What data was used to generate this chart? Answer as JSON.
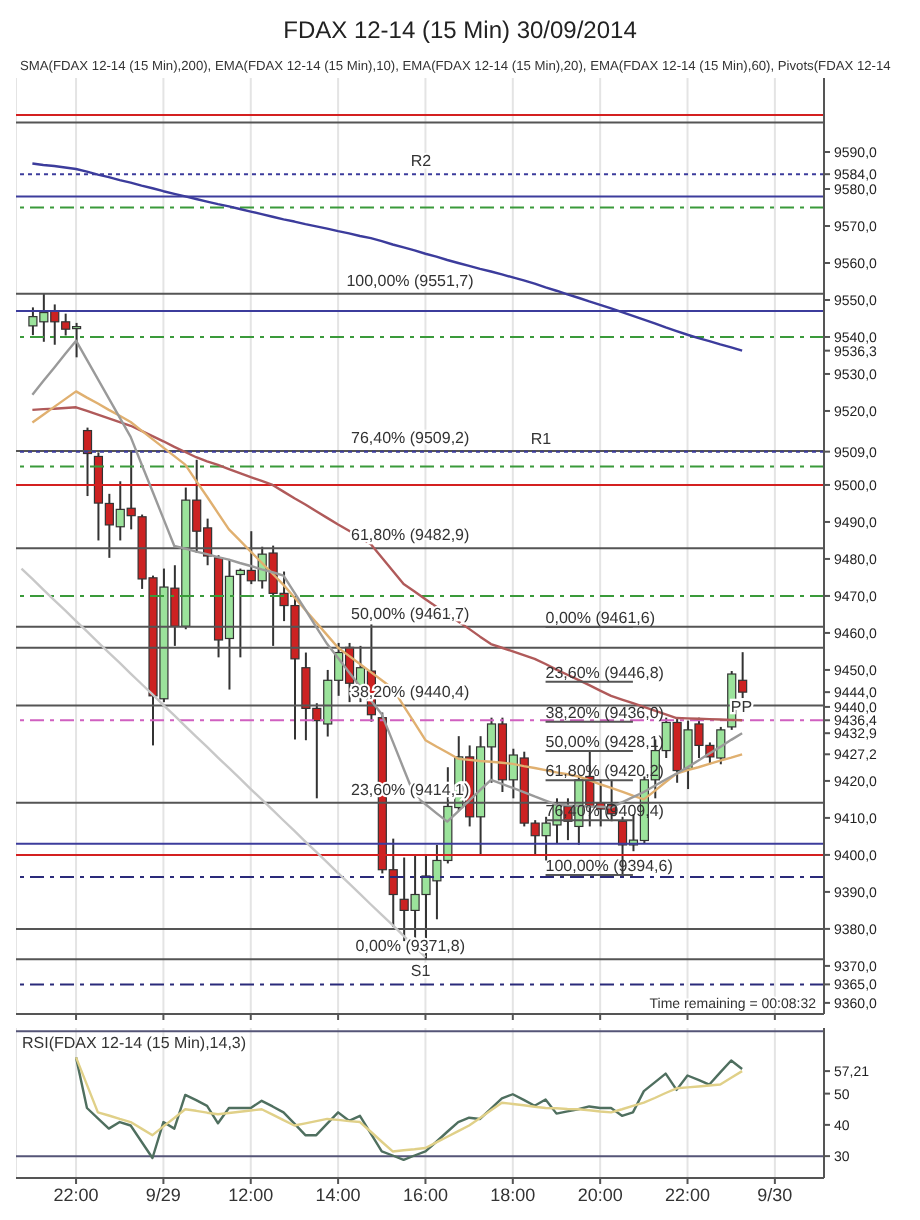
{
  "chart_data": [
    {
      "type": "candlestick",
      "title": "FDAX 12-14 (15 Min)  30/09/2014",
      "categories": [
        null,
        null,
        null,
        null,
        null,
        null,
        null,
        null,
        null,
        null,
        null,
        null,
        null,
        null,
        null,
        null,
        null,
        null,
        null,
        null,
        null,
        null,
        null,
        null,
        null,
        null,
        null,
        null,
        null,
        null,
        null,
        null,
        null,
        null,
        null,
        null,
        null,
        null,
        null,
        null,
        null,
        null,
        null,
        null,
        null,
        null,
        null,
        null,
        null,
        null,
        null,
        null,
        null,
        null,
        null,
        null,
        null,
        null,
        null,
        null,
        null,
        null,
        null,
        null,
        null,
        null,
        null,
        null,
        null,
        null,
        null,
        null,
        null,
        null
      ],
      "ohlc": [
        null,
        [
          9543,
          9548,
          9540.5,
          9545.5
        ],
        [
          9544.1,
          9551.7,
          9538.7,
          9546.6
        ],
        [
          9547.1,
          9548.8,
          9537.9,
          9544.1
        ],
        [
          9544.1,
          9546.3,
          9540.4,
          9542.1
        ],
        [
          9542.4,
          9543.8,
          9534.5,
          9542.8
        ],
        [
          9514.7,
          9515.5,
          9497,
          9508.5
        ],
        [
          9507.7,
          9508.8,
          9485,
          9495.1
        ],
        [
          9495,
          9497.6,
          9480.3,
          9489.2
        ],
        [
          9488.7,
          9501,
          9485,
          9493.4
        ],
        [
          9493.7,
          9509.3,
          9488,
          9491.7
        ],
        [
          9491.4,
          9492,
          9471.9,
          9474.6
        ],
        [
          9474.9,
          9475.5,
          9429.6,
          9443
        ],
        [
          9442.2,
          9477.4,
          9441.3,
          9472.4
        ],
        [
          9472.1,
          9478.3,
          9456.5,
          9461.8
        ],
        [
          9461.8,
          9499.3,
          9461,
          9495.9
        ],
        [
          9495.9,
          9506.8,
          9481.6,
          9487.5
        ],
        [
          9488.4,
          9490.9,
          9478.3,
          9480.8
        ],
        [
          9480.3,
          9481,
          9453.4,
          9458.1
        ],
        [
          9458.5,
          9480,
          9444.7,
          9475.3
        ],
        [
          9475.8,
          9477.4,
          9453.4,
          9476.9
        ],
        [
          9476.9,
          9487.5,
          9473.2,
          9474.1
        ],
        [
          9474.1,
          9483.3,
          9472,
          9481.3
        ],
        [
          9481.6,
          9483.6,
          9456.5,
          9470.7
        ],
        [
          9470.7,
          9476.6,
          9463.2,
          9467.4
        ],
        [
          9467.4,
          9470,
          9431.2,
          9453
        ],
        [
          9450.6,
          9454.7,
          9431,
          9439.6
        ],
        [
          9439.6,
          9441,
          9415.3,
          9436.3
        ],
        [
          9435.4,
          9450,
          9432,
          9447.2
        ],
        [
          9447.2,
          9457.3,
          9443,
          9454.7
        ],
        [
          9456.1,
          9457.3,
          9441.3,
          9446.4
        ],
        [
          9445.5,
          9456.5,
          9441.3,
          9450.6
        ],
        [
          9449.7,
          9462.3,
          9436,
          9437.9
        ],
        [
          9437.1,
          9438.5,
          9395,
          9396
        ],
        [
          9396,
          9404.4,
          9380.5,
          9389.3
        ],
        [
          9388,
          9399.3,
          9376.7,
          9385
        ],
        [
          9385,
          9399.7,
          9376.2,
          9389.3
        ],
        [
          9389.3,
          9399.7,
          9371.8,
          9394.3
        ],
        [
          9393,
          9402.7,
          9382.6,
          9398.5
        ],
        [
          9398.5,
          9423.7,
          9397.7,
          9413.1
        ],
        [
          9412.8,
          9432.1,
          9411.9,
          9426.5
        ],
        [
          9426.5,
          9429.6,
          9407.7,
          9410.3
        ],
        [
          9410.3,
          9432.1,
          9400.2,
          9429.2
        ],
        [
          9429.2,
          9437.1,
          9419.5,
          9435.4
        ],
        [
          9435.4,
          9437.1,
          9417,
          9420.3
        ],
        [
          9420.3,
          9428.7,
          9415.3,
          9427
        ],
        [
          9426.2,
          9427.9,
          9407.7,
          9408.6
        ],
        [
          9408.6,
          9409.4,
          9400.2,
          9405.2
        ],
        [
          9405.2,
          9410.3,
          9398.5,
          9408.6
        ],
        [
          9408.1,
          9415.3,
          9403,
          9413.6
        ],
        [
          9413.1,
          9415.3,
          9404,
          9409.1
        ],
        [
          9407.7,
          9421.2,
          9402.7,
          9420.3
        ],
        [
          9421.2,
          9427.9,
          9407.7,
          9413.1
        ],
        [
          9414.1,
          9420.3,
          9407.7,
          9412.4
        ],
        [
          9413.6,
          9420.3,
          9409.1,
          9411.1
        ],
        [
          9409.1,
          9410.3,
          9394.6,
          9402.7
        ],
        [
          9402.7,
          9411,
          9401,
          9404
        ],
        [
          9403.9,
          9421.2,
          9403,
          9420.3
        ],
        [
          9420.3,
          9431.2,
          9415.3,
          9428.2
        ],
        [
          9428.2,
          9437.1,
          9426.2,
          9435.8
        ],
        [
          9435.8,
          9437.1,
          9419.5,
          9422.8
        ],
        [
          9423.2,
          9436.3,
          9417.8,
          9433.8
        ],
        [
          9435.4,
          9437.1,
          9426.2,
          9429.6
        ],
        [
          9429.6,
          9430.4,
          9424.5,
          9426.5
        ],
        [
          9426.2,
          9434.6,
          9424.5,
          9433.8
        ],
        [
          9434.6,
          9449.7,
          9433.8,
          9448.9
        ],
        [
          9447.2,
          9454.8,
          9442.4,
          9444
        ],
        null,
        null,
        null,
        null,
        null,
        null,
        null
      ],
      "series": [
        {
          "type": "line",
          "color": "#c8c8c8",
          "values": [
            9477.4,
            9474.6,
            9471.7,
            9468.9,
            9466.1,
            9463.2,
            9460.4,
            9457.5,
            9454.7,
            9451.9,
            9449.0,
            9446.2,
            9443.4,
            9440.5,
            9437.7,
            9434.8,
            9432.0,
            9429.2,
            9426.3,
            9423.5,
            9420.7,
            9417.8,
            9415.0,
            9412.2,
            9409.3,
            9406.5,
            9403.6,
            9400.8,
            9398.0,
            9395.1,
            9392.3,
            9389.5,
            9386.6,
            9383.8,
            9381.0,
            9378.1,
            9375.3,
            9372.4,
            null,
            null,
            null,
            null,
            null,
            null,
            null,
            null,
            null,
            null,
            null,
            null,
            null,
            null,
            null,
            null,
            null,
            null,
            null,
            null,
            null,
            null,
            null,
            null,
            null,
            null,
            null,
            null,
            null,
            null,
            null,
            null,
            null,
            null,
            null,
            null
          ]
        },
        {
          "type": "line",
          "color": "#3c3c9c",
          "values": [
            null,
            9586.9,
            9586.5,
            9586.2,
            9585.8,
            9585.4,
            9584.7,
            9583.9,
            9583.2,
            9582.4,
            9581.7,
            9580.9,
            9580.2,
            9579.4,
            9578.7,
            9578.0,
            9577.3,
            9576.6,
            9575.9,
            9575.3,
            9574.6,
            9573.9,
            9573.2,
            9572.5,
            9571.8,
            9571.2,
            9570.5,
            9569.9,
            9569.3,
            9568.6,
            9568.0,
            9567.3,
            9566.7,
            9565.9,
            9565.0,
            9564.2,
            9563.4,
            9562.5,
            9561.7,
            9560.8,
            9560.0,
            9559.2,
            9558.4,
            9557.7,
            9556.9,
            9556.1,
            9555.3,
            9554.4,
            9553.4,
            9552.5,
            9551.5,
            9550.6,
            9549.6,
            9548.7,
            9547.7,
            9546.7,
            9545.7,
            9544.7,
            9543.7,
            9542.6,
            9541.6,
            9540.6,
            9539.7,
            9538.9,
            9538.0,
            9537.2,
            9536.3,
            null,
            null,
            null,
            null,
            null,
            null,
            null
          ]
        },
        {
          "type": "line",
          "color": "#b05a5a",
          "values": [
            null,
            9520.3,
            9520.5,
            9520.6,
            9520.8,
            9521,
            9520,
            9519,
            9518,
            9517,
            9516,
            9514.6,
            9513.2,
            9511.8,
            9510.3,
            9508.9,
            9507.5,
            9506.4,
            9505.4,
            9504.3,
            9503.2,
            9502.1,
            9501.1,
            9500,
            9498.2,
            9496.4,
            9494.7,
            9492.9,
            9491.1,
            9489.3,
            9487.6,
            9485.8,
            9484,
            9480.4,
            9476.8,
            9473.2,
            9471.2,
            9469.1,
            9467.1,
            9465.1,
            9463.1,
            9461.1,
            9459.0,
            9457,
            9456,
            9455,
            9454,
            9453,
            9451.6,
            9450.1,
            9448.7,
            9447.3,
            9445.9,
            9444.4,
            9443,
            9442,
            9441,
            9440,
            9439,
            9438,
            9437,
            9436.9,
            9436.8,
            9436.7,
            9436.6,
            9436.5,
            9436.4,
            null,
            null,
            null,
            null,
            null,
            null,
            null
          ]
        },
        {
          "type": "line",
          "color": "#e0b070",
          "values": [
            null,
            9516.9,
            9519.0,
            9521.1,
            9523.2,
            9525.3,
            9523.6,
            9522.0,
            9520.3,
            9518.7,
            9517,
            9514.7,
            9512.4,
            9510.1,
            9507.8,
            9505.5,
            9501.1,
            9496.8,
            9492.4,
            9488,
            9485,
            9482,
            9479,
            9476,
            9473,
            9469.6,
            9466.2,
            9462.8,
            9459.4,
            9456,
            9453.8,
            9451.6,
            9449.4,
            9447.2,
            9445,
            9440.3,
            9435.7,
            9431,
            9429.3,
            9427.7,
            9426,
            9425.7,
            9425.4,
            9425.2,
            9424.9,
            9424.6,
            9424.0,
            9423.5,
            9422.9,
            9422.3,
            9421.8,
            9421.2,
            9420.2,
            9419.1,
            9418.1,
            9417.1,
            9416.0,
            9415,
            9417.3,
            9419.7,
            9422,
            9422.9,
            9423.7,
            9424.6,
            9425.5,
            9426.3,
            9427.2,
            null,
            null,
            null,
            null,
            null,
            null,
            null
          ]
        },
        {
          "type": "line",
          "color": "#9a9a9a",
          "values": [
            null,
            9524.4,
            9528.1,
            9531.7,
            9535.4,
            9539,
            9533.8,
            9528.6,
            9523.4,
            9518.2,
            9513,
            9505.6,
            9498.3,
            9490.9,
            9483.5,
            9482.8,
            9482.0,
            9481.3,
            9480.5,
            9479.8,
            9478.9,
            9478.1,
            9477.2,
            9476.4,
            9475.5,
            9470.9,
            9466.3,
            9461.6,
            9457,
            9453.2,
            9449.4,
            9445.6,
            9441.8,
            9438,
            9430.7,
            9423.3,
            9416,
            9413.7,
            9411.3,
            9409,
            9411.8,
            9414.7,
            9417.5,
            9420.3,
            9419.2,
            9418.1,
            9417.0,
            9415.8,
            9414.7,
            9413.6,
            9413.4,
            9413.3,
            9413.1,
            9413.0,
            9412.8,
            9414.2,
            9415.6,
            9417,
            9418.7,
            9420.4,
            9422.0,
            9423.7,
            9425.5,
            9427.4,
            9429.2,
            9431.1,
            9432.9,
            null,
            null,
            null,
            null,
            null,
            null,
            null
          ]
        },
        {
          "type": "line",
          "name": "0,00% (9461,6)",
          "color": "#555555",
          "values": [
            null,
            null,
            null,
            null,
            null,
            null,
            null,
            null,
            null,
            null,
            null,
            null,
            null,
            null,
            null,
            null,
            null,
            null,
            null,
            null,
            null,
            null,
            null,
            null,
            null,
            null,
            null,
            null,
            null,
            null,
            null,
            null,
            null,
            null,
            null,
            null,
            null,
            null,
            null,
            null,
            null,
            null,
            null,
            null,
            null,
            null,
            null,
            null,
            9461.6,
            9461.6,
            9461.6,
            9461.6,
            9461.6,
            9461.6,
            9461.6,
            9461.6,
            9461.6,
            null,
            null,
            null,
            null,
            null,
            null,
            null,
            null,
            null,
            null,
            null,
            null,
            null,
            null,
            null,
            null,
            null
          ]
        },
        {
          "type": "line",
          "name": "23,60% (9446,8)",
          "color": "#555555",
          "values": [
            null,
            null,
            null,
            null,
            null,
            null,
            null,
            null,
            null,
            null,
            null,
            null,
            null,
            null,
            null,
            null,
            null,
            null,
            null,
            null,
            null,
            null,
            null,
            null,
            null,
            null,
            null,
            null,
            null,
            null,
            null,
            null,
            null,
            null,
            null,
            null,
            null,
            null,
            null,
            null,
            null,
            null,
            null,
            null,
            null,
            null,
            null,
            null,
            9446.8,
            9446.8,
            9446.8,
            9446.8,
            9446.8,
            9446.8,
            9446.8,
            9446.8,
            9446.8,
            null,
            null,
            null,
            null,
            null,
            null,
            null,
            null,
            null,
            null,
            null,
            null,
            null,
            null,
            null,
            null,
            null
          ]
        },
        {
          "type": "line",
          "name": "38,20% (9436,0)",
          "color": "#555555",
          "values": [
            null,
            null,
            null,
            null,
            null,
            null,
            null,
            null,
            null,
            null,
            null,
            null,
            null,
            null,
            null,
            null,
            null,
            null,
            null,
            null,
            null,
            null,
            null,
            null,
            null,
            null,
            null,
            null,
            null,
            null,
            null,
            null,
            null,
            null,
            null,
            null,
            null,
            null,
            null,
            null,
            null,
            null,
            null,
            null,
            null,
            null,
            null,
            null,
            9436,
            9436,
            9436,
            9436,
            9436,
            9436,
            9436,
            9436,
            9436,
            null,
            null,
            null,
            null,
            null,
            null,
            null,
            null,
            null,
            null,
            null,
            null,
            null,
            null,
            null,
            null,
            null
          ]
        },
        {
          "type": "line",
          "name": "50,00% (9428,1)",
          "color": "#555555",
          "values": [
            null,
            null,
            null,
            null,
            null,
            null,
            null,
            null,
            null,
            null,
            null,
            null,
            null,
            null,
            null,
            null,
            null,
            null,
            null,
            null,
            null,
            null,
            null,
            null,
            null,
            null,
            null,
            null,
            null,
            null,
            null,
            null,
            null,
            null,
            null,
            null,
            null,
            null,
            null,
            null,
            null,
            null,
            null,
            null,
            null,
            null,
            null,
            null,
            9428.1,
            9428.1,
            9428.1,
            9428.1,
            9428.1,
            9428.1,
            9428.1,
            9428.1,
            9428.1,
            null,
            null,
            null,
            null,
            null,
            null,
            null,
            null,
            null,
            null,
            null,
            null,
            null,
            null,
            null,
            null,
            null
          ]
        },
        {
          "type": "line",
          "name": "61,80% (9420,2)",
          "color": "#555555",
          "values": [
            null,
            null,
            null,
            null,
            null,
            null,
            null,
            null,
            null,
            null,
            null,
            null,
            null,
            null,
            null,
            null,
            null,
            null,
            null,
            null,
            null,
            null,
            null,
            null,
            null,
            null,
            null,
            null,
            null,
            null,
            null,
            null,
            null,
            null,
            null,
            null,
            null,
            null,
            null,
            null,
            null,
            null,
            null,
            null,
            null,
            null,
            null,
            null,
            9420.2,
            9420.2,
            9420.2,
            9420.2,
            9420.2,
            9420.2,
            9420.2,
            9420.2,
            9420.2,
            null,
            null,
            null,
            null,
            null,
            null,
            null,
            null,
            null,
            null,
            null,
            null,
            null,
            null,
            null,
            null,
            null
          ]
        },
        {
          "type": "line",
          "name": "76,40% (9409,4)",
          "color": "#555555",
          "values": [
            null,
            null,
            null,
            null,
            null,
            null,
            null,
            null,
            null,
            null,
            null,
            null,
            null,
            null,
            null,
            null,
            null,
            null,
            null,
            null,
            null,
            null,
            null,
            null,
            null,
            null,
            null,
            null,
            null,
            null,
            null,
            null,
            null,
            null,
            null,
            null,
            null,
            null,
            null,
            null,
            null,
            null,
            null,
            null,
            null,
            null,
            null,
            null,
            9409.4,
            9409.4,
            9409.4,
            9409.4,
            9409.4,
            9409.4,
            9409.4,
            9409.4,
            9409.4,
            null,
            null,
            null,
            null,
            null,
            null,
            null,
            null,
            null,
            null,
            null,
            null,
            null,
            null,
            null,
            null,
            null
          ]
        },
        {
          "type": "line",
          "name": "100,00% (9394,6)",
          "color": "#555555",
          "values": [
            null,
            null,
            null,
            null,
            null,
            null,
            null,
            null,
            null,
            null,
            null,
            null,
            null,
            null,
            null,
            null,
            null,
            null,
            null,
            null,
            null,
            null,
            null,
            null,
            null,
            null,
            null,
            null,
            null,
            null,
            null,
            null,
            null,
            null,
            null,
            null,
            null,
            null,
            null,
            null,
            null,
            null,
            null,
            null,
            null,
            null,
            null,
            null,
            9394.6,
            9394.6,
            9394.6,
            9394.6,
            9394.6,
            9394.6,
            9394.6,
            9394.6,
            9394.6,
            null,
            null,
            null,
            null,
            null,
            null,
            null,
            null,
            null,
            null,
            null,
            null,
            null,
            null,
            null,
            null,
            null
          ]
        }
      ],
      "ylim": [
        9357,
        9610
      ],
      "yticks": [
        {
          "value": 9360,
          "label": "9360,0"
        },
        {
          "value": 9365,
          "label": "9365,0"
        },
        {
          "value": 9370,
          "label": "9370,0"
        },
        {
          "value": 9380,
          "label": "9380,0"
        },
        {
          "value": 9390,
          "label": "9390,0"
        },
        {
          "value": 9400,
          "label": "9400,0"
        },
        {
          "value": 9410,
          "label": "9410,0"
        },
        {
          "value": 9420,
          "label": "9420,0"
        },
        {
          "value": 9427.2,
          "label": "9427,2"
        },
        {
          "value": 9432.9,
          "label": "9432,9"
        },
        {
          "value": 9436.4,
          "label": "9436,4"
        },
        {
          "value": 9440,
          "label": "9440,0"
        },
        {
          "value": 9444,
          "label": "9444,0"
        },
        {
          "value": 9450,
          "label": "9450,0"
        },
        {
          "value": 9460,
          "label": "9460,0"
        },
        {
          "value": 9470,
          "label": "9470,0"
        },
        {
          "value": 9480,
          "label": "9480,0"
        },
        {
          "value": 9490,
          "label": "9490,0"
        },
        {
          "value": 9500,
          "label": "9500,0"
        },
        {
          "value": 9509,
          "label": "9509,0"
        },
        {
          "value": 9520,
          "label": "9520,0"
        },
        {
          "value": 9530,
          "label": "9530,0"
        },
        {
          "value": 9536.3,
          "label": "9536,3"
        },
        {
          "value": 9540,
          "label": "9540,0"
        },
        {
          "value": 9550,
          "label": "9550,0"
        },
        {
          "value": 9560,
          "label": "9560,0"
        },
        {
          "value": 9570,
          "label": "9570,0"
        },
        {
          "value": 9580,
          "label": "9580,0"
        },
        {
          "value": 9584,
          "label": "9584,0"
        },
        {
          "value": 9590,
          "label": "9590,0"
        }
      ],
      "tick_labels": "y",
      "grid": "x",
      "ref_lines": [
        {
          "axis": "y",
          "value": 9600,
          "color": "#d42020"
        },
        {
          "axis": "y",
          "value": 9598,
          "color": "#555555"
        },
        {
          "axis": "y",
          "value": 9584,
          "label": "R2",
          "color": "#3c3c9c",
          "line_style": "dotted"
        },
        {
          "axis": "y",
          "value": 9578,
          "color": "#3c3c9c"
        },
        {
          "axis": "y",
          "value": 9575,
          "color": "#3a9a3a",
          "line_style": "dashed"
        },
        {
          "axis": "y",
          "value": 9551.7,
          "label": "100,00% (9551,7)",
          "color": "#555555"
        },
        {
          "axis": "y",
          "value": 9547,
          "color": "#3c3c9c"
        },
        {
          "axis": "y",
          "value": 9540,
          "color": "#3a9a3a",
          "line_style": "dashed"
        },
        {
          "axis": "y",
          "value": 9509.2,
          "label": "76,40% (9509,2)",
          "color": "#555555"
        },
        {
          "axis": "y",
          "value": 9509,
          "label": "R1",
          "color": "#3c3c9c",
          "line_style": "dotted"
        },
        {
          "axis": "y",
          "value": 9505,
          "color": "#3a9a3a",
          "line_style": "dashed"
        },
        {
          "axis": "y",
          "value": 9500,
          "color": "#d42020"
        },
        {
          "axis": "y",
          "value": 9482.9,
          "label": "61,80% (9482,9)",
          "color": "#555555"
        },
        {
          "axis": "y",
          "value": 9470,
          "color": "#3a9a3a",
          "line_style": "dashed"
        },
        {
          "axis": "y",
          "value": 9461.7,
          "label": "50,00% (9461,7)",
          "color": "#555555"
        },
        {
          "axis": "y",
          "value": 9456,
          "color": "#555555"
        },
        {
          "axis": "y",
          "value": 9440.4,
          "label": "38,20% (9440,4)",
          "color": "#555555"
        },
        {
          "axis": "y",
          "value": 9436.4,
          "label": "PP",
          "color": "#d060c0",
          "line_style": "dashed"
        },
        {
          "axis": "y",
          "value": 9414.1,
          "label": "23,60% (9414,1)",
          "color": "#555555"
        },
        {
          "axis": "y",
          "value": 9403,
          "color": "#3c3c9c"
        },
        {
          "axis": "y",
          "value": 9400,
          "color": "#d42020"
        },
        {
          "axis": "y",
          "value": 9394,
          "color": "#2a2a7a",
          "line_style": "dashed"
        },
        {
          "axis": "y",
          "value": 9380,
          "color": "#555555"
        },
        {
          "axis": "y",
          "value": 9371.8,
          "label": "0,00% (9371,8)",
          "color": "#555555"
        },
        {
          "axis": "y",
          "value": 9365,
          "label": "S1",
          "color": "#2a2a7a",
          "line_style": "dashed"
        }
      ],
      "annotations": [
        "SMA(FDAX 12-14 (15 Min),200), EMA(FDAX 12-14 (15 Min),10), EMA(FDAX 12-14 (15 Min),20), EMA(FDAX 12-14 (15 Min),60), Pivots(FDAX 12-14",
        "Time remaining = 00:08:32"
      ]
    },
    {
      "type": "line",
      "title": "RSI(FDAX 12-14 (15 Min),14,3)",
      "categories": [
        null,
        null,
        null,
        null,
        null,
        "22:00",
        null,
        null,
        null,
        null,
        null,
        null,
        null,
        "9/29",
        null,
        null,
        null,
        null,
        null,
        null,
        null,
        "12:00",
        null,
        null,
        null,
        null,
        null,
        null,
        null,
        "14:00",
        null,
        null,
        null,
        null,
        null,
        null,
        null,
        "16:00",
        null,
        null,
        null,
        null,
        null,
        null,
        null,
        "18:00",
        null,
        null,
        null,
        null,
        null,
        null,
        null,
        "20:00",
        null,
        null,
        null,
        null,
        null,
        null,
        null,
        "22:00",
        null,
        null,
        null,
        null,
        null,
        null,
        null,
        "9/30",
        null,
        null,
        null,
        null
      ],
      "series": [
        {
          "color": "#4f6f5f",
          "values": [
            null,
            null,
            null,
            null,
            null,
            61.6,
            45.4,
            42.1,
            38.8,
            40.9,
            39.8,
            34.6,
            29.4,
            40.9,
            38.8,
            49.6,
            47.9,
            46.1,
            40.5,
            45.4,
            45.4,
            45.4,
            47.7,
            45.9,
            44,
            40.4,
            36.7,
            36.7,
            40.4,
            44,
            41.3,
            42.9,
            37.2,
            31.5,
            30.2,
            28.8,
            30.2,
            31.5,
            34.6,
            37.8,
            40.9,
            42.3,
            41.9,
            45.2,
            48.5,
            49.8,
            48,
            46.1,
            48.1,
            43.6,
            44.3,
            45,
            45.9,
            45.4,
            45.4,
            42.9,
            44,
            50.8,
            53.6,
            56.4,
            51.2,
            55.8,
            54.4,
            52.9,
            56.8,
            60.6,
            57.9,
            null,
            null,
            null,
            null,
            null,
            null,
            null
          ]
        },
        {
          "color": "#e0d088",
          "values": [
            null,
            null,
            null,
            null,
            null,
            61.6,
            52.8,
            44,
            43,
            41.9,
            40.9,
            38.8,
            36.7,
            39.5,
            42.2,
            45,
            44.5,
            43.9,
            43.4,
            43.8,
            44.2,
            44.6,
            45,
            43.3,
            41.5,
            39.8,
            40.5,
            41.2,
            41.9,
            41.6,
            41.2,
            40.9,
            37.8,
            34.6,
            31.5,
            31.9,
            32.2,
            32.6,
            34.4,
            36.2,
            38,
            39.8,
            42.2,
            44.7,
            47.1,
            46.7,
            46.3,
            45.8,
            45.4,
            45.3,
            45.1,
            45,
            44.7,
            44.3,
            44,
            45,
            46.1,
            47.1,
            48.6,
            50.2,
            51.7,
            52,
            52.3,
            52.6,
            52.9,
            55.1,
            57.2,
            null,
            null,
            null,
            null,
            null,
            null,
            null
          ]
        }
      ],
      "ylim": [
        23,
        71
      ],
      "yticks": [
        30,
        40,
        50,
        {
          "value": 57.21,
          "label": "57,21"
        }
      ],
      "grid": "x",
      "ref_lines": [
        {
          "axis": "y",
          "value": 70,
          "color": "#555577"
        },
        {
          "axis": "y",
          "value": 30,
          "color": "#555577"
        }
      ]
    }
  ]
}
